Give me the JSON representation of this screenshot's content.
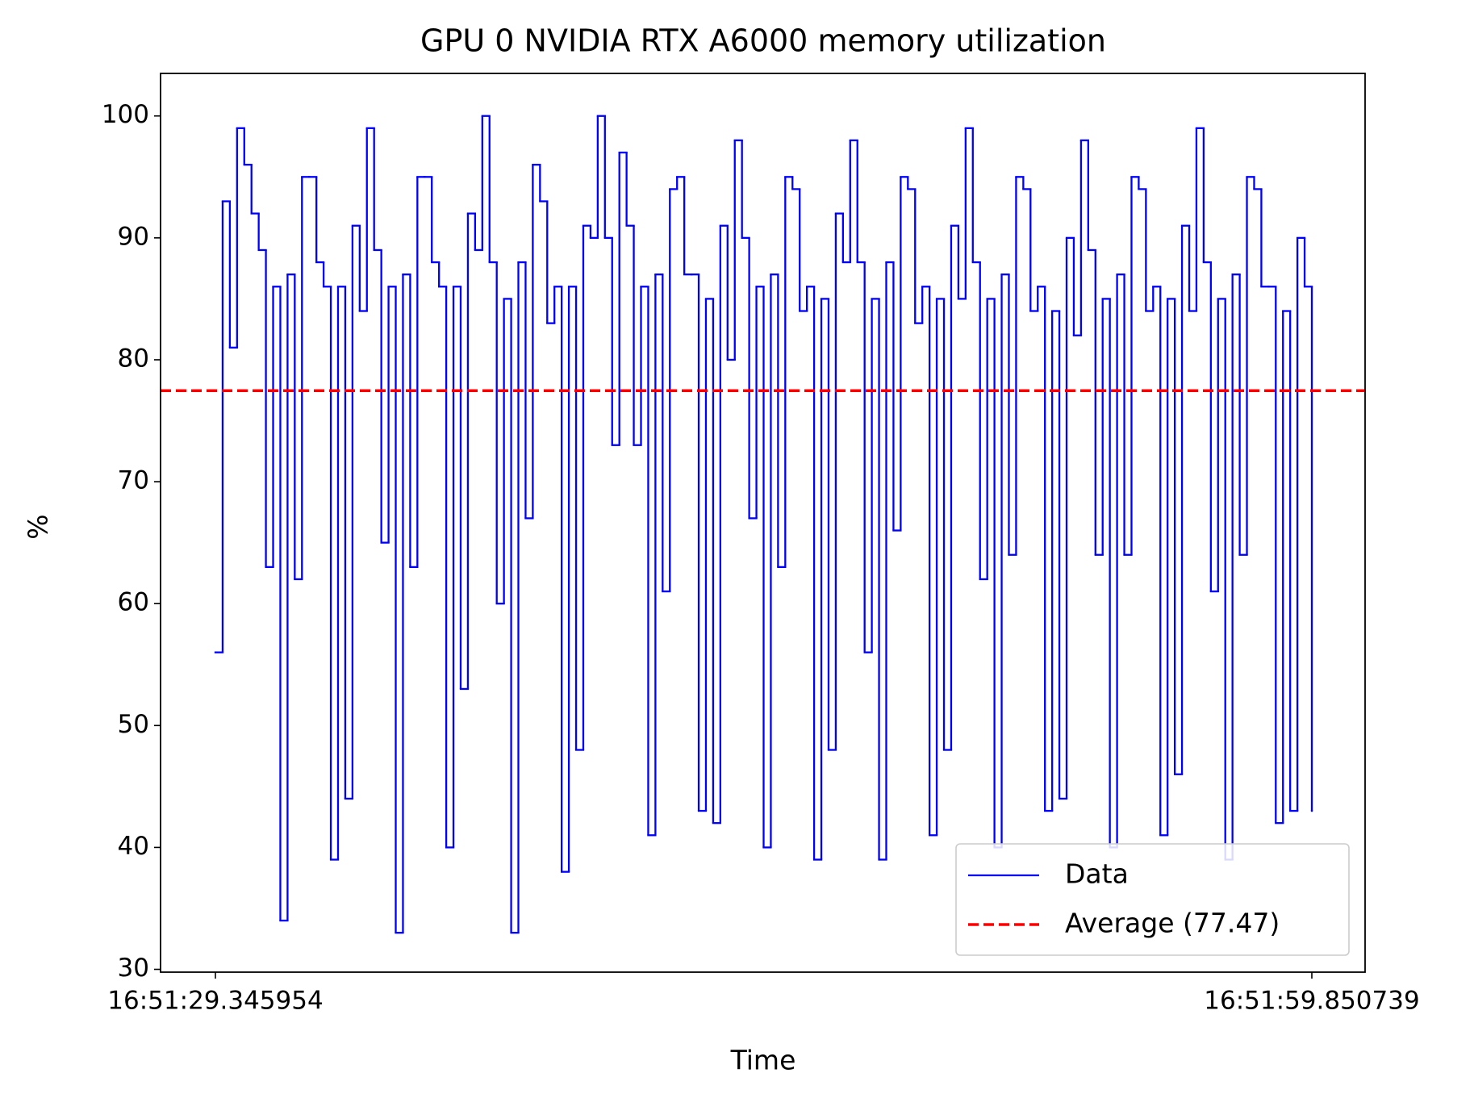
{
  "chart_data": {
    "type": "line",
    "drawstyle": "steps-post",
    "title": "GPU 0 NVIDIA RTX A6000 memory utilization",
    "xlabel": "Time",
    "ylabel": "%",
    "categories": [
      "16:51:29.345954",
      null,
      null,
      null,
      null,
      null,
      null,
      null,
      null,
      null,
      null,
      null,
      null,
      null,
      null,
      null,
      null,
      null,
      null,
      null,
      null,
      null,
      null,
      null,
      null,
      null,
      null,
      null,
      null,
      null,
      null,
      null,
      null,
      null,
      null,
      null,
      null,
      null,
      null,
      null,
      null,
      null,
      null,
      null,
      null,
      null,
      null,
      null,
      null,
      null,
      null,
      null,
      null,
      null,
      null,
      null,
      null,
      null,
      null,
      null,
      null,
      null,
      null,
      null,
      null,
      null,
      null,
      null,
      null,
      null,
      null,
      null,
      null,
      null,
      null,
      null,
      null,
      null,
      null,
      null,
      null,
      null,
      null,
      null,
      null,
      null,
      null,
      null,
      null,
      null,
      null,
      null,
      null,
      null,
      null,
      null,
      null,
      null,
      null,
      null,
      null,
      null,
      null,
      null,
      null,
      null,
      null,
      null,
      null,
      null,
      null,
      null,
      null,
      null,
      null,
      null,
      null,
      null,
      null,
      null,
      null,
      null,
      null,
      null,
      null,
      null,
      null,
      null,
      null,
      null,
      null,
      null,
      null,
      null,
      null,
      null,
      null,
      null,
      null,
      null,
      null,
      null,
      null,
      null,
      null,
      null,
      null,
      null,
      null,
      null,
      null,
      null,
      "16:51:59.850739"
    ],
    "series": [
      {
        "name": "Data",
        "color": "#0000ff",
        "values": [
          56,
          93,
          81,
          99,
          96,
          92,
          89,
          63,
          86,
          34,
          87,
          62,
          95,
          95,
          88,
          86,
          39,
          86,
          44,
          91,
          84,
          99,
          89,
          65,
          86,
          33,
          87,
          63,
          95,
          95,
          88,
          86,
          40,
          86,
          53,
          92,
          89,
          100,
          88,
          60,
          85,
          33,
          88,
          67,
          96,
          93,
          83,
          86,
          38,
          86,
          48,
          91,
          90,
          100,
          90,
          73,
          97,
          91,
          73,
          86,
          41,
          87,
          61,
          94,
          95,
          87,
          87,
          43,
          85,
          42,
          91,
          80,
          98,
          90,
          67,
          86,
          40,
          87,
          63,
          95,
          94,
          84,
          86,
          39,
          85,
          48,
          92,
          88,
          98,
          88,
          56,
          85,
          39,
          88,
          66,
          95,
          94,
          83,
          86,
          41,
          85,
          48,
          91,
          85,
          99,
          88,
          62,
          85,
          40,
          87,
          64,
          95,
          94,
          84,
          86,
          43,
          84,
          44,
          90,
          82,
          98,
          89,
          64,
          85,
          40,
          87,
          64,
          95,
          94,
          84,
          86,
          41,
          85,
          46,
          91,
          84,
          99,
          88,
          61,
          85,
          39,
          87,
          64,
          95,
          94,
          86,
          86,
          42,
          84,
          43,
          90,
          86,
          43
        ]
      }
    ],
    "average": {
      "name": "Average (77.47)",
      "value": 77.47,
      "color": "#ff0000"
    },
    "ylim": [
      29.77,
      103.49
    ],
    "yticks": [
      30,
      40,
      50,
      60,
      70,
      80,
      90,
      100
    ],
    "grid": false,
    "legend": "lower right"
  }
}
